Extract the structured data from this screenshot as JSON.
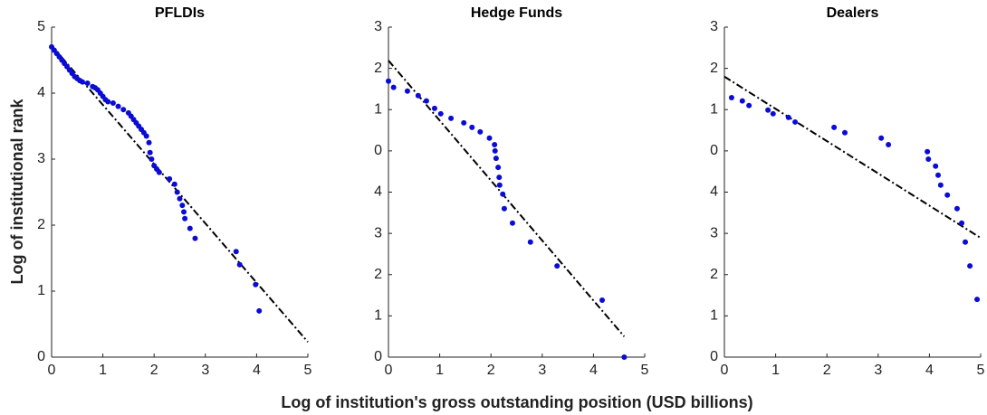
{
  "figure": {
    "xlabel": "Log of institution's gross outstanding position (USD billions)",
    "ylabel": "Log of institutional rank"
  },
  "chart_data": [
    {
      "type": "scatter",
      "title": "PFLDIs",
      "color": "#0b0bd6",
      "fit_color": "#000000",
      "xlim": [
        0,
        5
      ],
      "xticks": [
        0,
        1,
        2,
        3,
        4,
        5
      ],
      "ylim": [
        0,
        5
      ],
      "yticks": [
        0,
        1,
        2,
        3,
        4,
        5
      ],
      "points": {
        "x": [
          0,
          0.05,
          0.1,
          0.15,
          0.2,
          0.25,
          0.3,
          0.35,
          0.4,
          0.45,
          0.5,
          0.55,
          0.6,
          0.7,
          0.8,
          0.85,
          0.9,
          0.95,
          1.0,
          1.05,
          1.1,
          1.2,
          1.3,
          1.4,
          1.5,
          1.55,
          1.6,
          1.65,
          1.7,
          1.75,
          1.8,
          1.85,
          1.9,
          1.92,
          1.95,
          2.0,
          2.05,
          2.1,
          2.3,
          2.4,
          2.45,
          2.5,
          2.55,
          2.58,
          2.6,
          2.7,
          2.8,
          3.6,
          3.67,
          3.98,
          4.05
        ],
        "y": [
          4.7,
          4.65,
          4.6,
          4.55,
          4.5,
          4.45,
          4.4,
          4.35,
          4.3,
          4.25,
          4.22,
          4.19,
          4.17,
          4.15,
          4.1,
          4.08,
          4.05,
          4.0,
          3.95,
          3.9,
          3.87,
          3.85,
          3.8,
          3.75,
          3.7,
          3.65,
          3.6,
          3.55,
          3.5,
          3.45,
          3.4,
          3.35,
          3.25,
          3.1,
          3.0,
          2.9,
          2.85,
          2.8,
          2.7,
          2.62,
          2.5,
          2.4,
          2.3,
          2.2,
          2.1,
          1.95,
          1.8,
          1.6,
          1.4,
          1.1,
          0.7
        ]
      },
      "fit_line": {
        "x": [
          0,
          5
        ],
        "y": [
          4.72,
          0.23
        ]
      }
    },
    {
      "type": "scatter",
      "title": "Hedge Funds",
      "color": "#0b0bd6",
      "fit_color": "#000000",
      "xlim": [
        0,
        5
      ],
      "xticks": [
        0,
        1,
        2,
        3,
        4,
        5
      ],
      "ylim": [
        0,
        8
      ],
      "yticks": [
        0,
        1,
        2,
        3,
        4,
        {
          "value": 5,
          "label": "0"
        },
        {
          "value": 6,
          "label": "1"
        },
        {
          "value": 7,
          "label": "2"
        },
        {
          "value": 8,
          "label": "3"
        }
      ],
      "points": {
        "x": [
          0,
          0.1,
          0.37,
          0.58,
          0.74,
          0.9,
          1.02,
          1.22,
          1.47,
          1.63,
          1.79,
          1.97,
          2.07,
          2.08,
          2.1,
          2.14,
          2.16,
          2.17,
          2.23,
          2.26,
          2.42,
          2.77,
          3.29,
          4.17,
          4.6
        ],
        "y": [
          6.69,
          6.54,
          6.45,
          6.34,
          6.21,
          6.03,
          5.9,
          5.79,
          5.68,
          5.57,
          5.46,
          5.31,
          5.15,
          5.0,
          4.82,
          4.6,
          4.36,
          4.17,
          3.95,
          3.6,
          3.25,
          2.79,
          2.21,
          1.38,
          0
        ]
      },
      "fit_line": {
        "x": [
          0,
          4.6
        ],
        "y": [
          7.19,
          0.5
        ]
      }
    },
    {
      "type": "scatter",
      "title": "Dealers",
      "color": "#0b0bd6",
      "fit_color": "#000000",
      "xlim": [
        0,
        5
      ],
      "xticks": [
        0,
        1,
        2,
        3,
        4,
        5
      ],
      "ylim": [
        0,
        8
      ],
      "yticks": [
        0,
        1,
        2,
        3,
        4,
        {
          "value": 5,
          "label": "0"
        },
        {
          "value": 6,
          "label": "1"
        },
        {
          "value": 7,
          "label": "2"
        },
        {
          "value": 8,
          "label": "3"
        }
      ],
      "points": {
        "x": [
          0.14,
          0.35,
          0.48,
          0.85,
          0.95,
          1.25,
          1.38,
          2.14,
          2.35,
          3.06,
          3.2,
          3.96,
          3.98,
          4.12,
          4.17,
          4.22,
          4.35,
          4.54,
          4.63,
          4.7,
          4.79,
          4.93
        ],
        "y": [
          6.29,
          6.21,
          6.1,
          5.99,
          5.9,
          5.81,
          5.7,
          5.57,
          5.44,
          5.31,
          5.15,
          4.98,
          4.8,
          4.63,
          4.41,
          4.17,
          3.93,
          3.6,
          3.25,
          2.79,
          2.21,
          1.4
        ]
      },
      "fit_line": {
        "x": [
          0,
          5
        ],
        "y": [
          6.8,
          2.89
        ]
      }
    }
  ]
}
